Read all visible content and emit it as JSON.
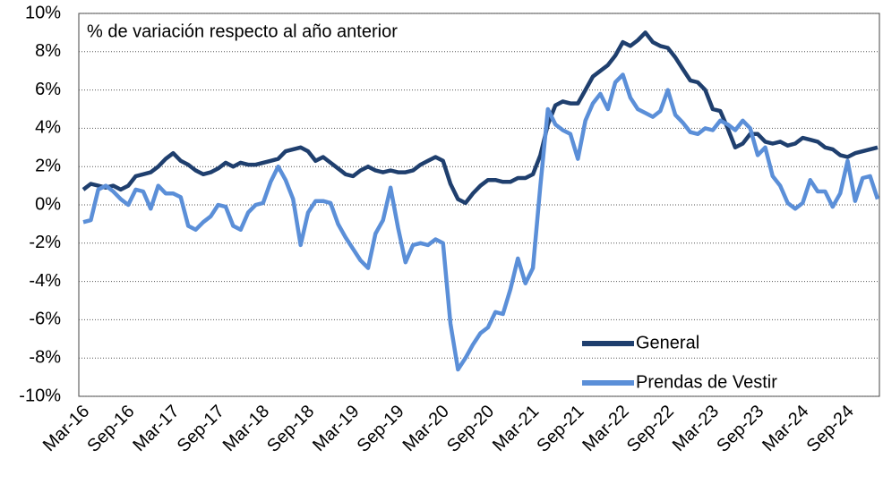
{
  "chart_data": {
    "type": "line",
    "annotation": "% de variación respecto al año anterior",
    "categories": [
      "Mar-16",
      null,
      null,
      null,
      null,
      null,
      "Sep-16",
      null,
      null,
      null,
      null,
      null,
      "Mar-17",
      null,
      null,
      null,
      null,
      null,
      "Sep-17",
      null,
      null,
      null,
      null,
      null,
      "Mar-18",
      null,
      null,
      null,
      null,
      null,
      "Sep-18",
      null,
      null,
      null,
      null,
      null,
      "Mar-19",
      null,
      null,
      null,
      null,
      null,
      "Sep-19",
      null,
      null,
      null,
      null,
      null,
      "Mar-20",
      null,
      null,
      null,
      null,
      null,
      "Sep-20",
      null,
      null,
      null,
      null,
      null,
      "Mar-21",
      null,
      null,
      null,
      null,
      null,
      "Sep-21",
      null,
      null,
      null,
      null,
      null,
      "Mar-22",
      null,
      null,
      null,
      null,
      null,
      "Sep-22",
      null,
      null,
      null,
      null,
      null,
      "Mar-23",
      null,
      null,
      null,
      null,
      null,
      "Sep-23",
      null,
      null,
      null,
      null,
      null,
      "Mar-24",
      null,
      null,
      null,
      null,
      null,
      "Sep-24",
      null,
      null,
      null,
      null
    ],
    "series": [
      {
        "name": "General",
        "color": "#1f3f6e",
        "values": [
          0.8,
          1.1,
          1.0,
          0.9,
          1.0,
          0.8,
          1.0,
          1.5,
          1.6,
          1.7,
          2.0,
          2.4,
          2.7,
          2.3,
          2.1,
          1.8,
          1.6,
          1.7,
          1.9,
          2.2,
          2.0,
          2.2,
          2.1,
          2.1,
          2.2,
          2.3,
          2.4,
          2.8,
          2.9,
          3.0,
          2.8,
          2.3,
          2.5,
          2.2,
          1.9,
          1.6,
          1.5,
          1.8,
          2.0,
          1.8,
          1.7,
          1.8,
          1.7,
          1.7,
          1.8,
          2.1,
          2.3,
          2.5,
          2.3,
          1.1,
          0.3,
          0.1,
          0.6,
          1.0,
          1.3,
          1.3,
          1.2,
          1.2,
          1.4,
          1.4,
          1.6,
          2.6,
          4.2,
          5.2,
          5.4,
          5.3,
          5.3,
          6.0,
          6.7,
          7.0,
          7.3,
          7.8,
          8.5,
          8.3,
          8.6,
          9.0,
          8.5,
          8.3,
          8.2,
          7.7,
          7.1,
          6.5,
          6.4,
          6.0,
          5.0,
          4.9,
          4.0,
          3.0,
          3.2,
          3.7,
          3.7,
          3.3,
          3.2,
          3.3,
          3.1,
          3.2,
          3.5,
          3.4,
          3.3,
          3.0,
          2.9,
          2.6,
          2.5,
          2.7,
          2.8,
          2.9,
          3.0
        ]
      },
      {
        "name": "Prendas de Vestir",
        "color": "#5b8fd8",
        "values": [
          -0.9,
          -0.8,
          0.8,
          1.0,
          0.7,
          0.3,
          0.0,
          0.8,
          0.7,
          -0.2,
          1.0,
          0.6,
          0.6,
          0.4,
          -1.1,
          -1.3,
          -0.9,
          -0.6,
          0.0,
          -0.1,
          -1.1,
          -1.3,
          -0.4,
          0.0,
          0.1,
          1.2,
          2.0,
          1.3,
          0.3,
          -2.1,
          -0.4,
          0.2,
          0.2,
          0.1,
          -1.0,
          -1.7,
          -2.3,
          -2.9,
          -3.3,
          -1.5,
          -0.8,
          0.9,
          -1.2,
          -3.0,
          -2.1,
          -2.0,
          -2.1,
          -1.8,
          -2.0,
          -6.2,
          -8.6,
          -8.0,
          -7.3,
          -6.7,
          -6.4,
          -5.6,
          -5.7,
          -4.4,
          -2.8,
          -4.1,
          -3.3,
          1.0,
          5.0,
          4.2,
          3.9,
          3.7,
          2.4,
          4.4,
          5.3,
          5.8,
          5.0,
          6.4,
          6.8,
          5.6,
          5.0,
          4.8,
          4.6,
          4.9,
          6.0,
          4.7,
          4.3,
          3.8,
          3.7,
          4.0,
          3.9,
          4.4,
          4.2,
          3.9,
          4.4,
          4.0,
          2.6,
          3.0,
          1.5,
          1.0,
          0.1,
          -0.2,
          0.1,
          1.3,
          0.7,
          0.7,
          -0.1,
          0.6,
          2.3,
          0.2,
          1.4,
          1.5,
          0.3
        ]
      }
    ],
    "ylim": [
      -10,
      10
    ],
    "yticks": [
      {
        "value": -10,
        "label": "-10%"
      },
      {
        "value": -8,
        "label": "-8%"
      },
      {
        "value": -6,
        "label": "-6%"
      },
      {
        "value": -4,
        "label": "-4%"
      },
      {
        "value": -2,
        "label": "-2%"
      },
      {
        "value": 0,
        "label": "0%"
      },
      {
        "value": 2,
        "label": "2%"
      },
      {
        "value": 4,
        "label": "4%"
      },
      {
        "value": 6,
        "label": "6%"
      },
      {
        "value": 8,
        "label": "8%"
      },
      {
        "value": 10,
        "label": "10%"
      }
    ],
    "grid": true,
    "legend": "lower right"
  }
}
